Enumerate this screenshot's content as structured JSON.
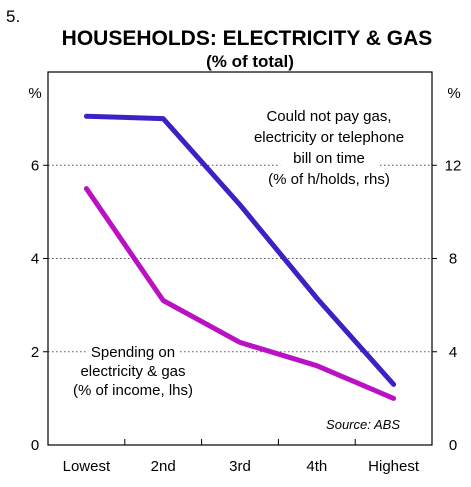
{
  "chart_data": {
    "type": "line",
    "figure_number": "5.",
    "title": "HOUSEHOLDS: ELECTRICITY & GAS",
    "subtitle": "(% of total)",
    "categories": [
      "Lowest",
      "2nd",
      "3rd",
      "4th",
      "Highest"
    ],
    "left_axis": {
      "unit": "%",
      "ylim": [
        0,
        8
      ],
      "ticks": [
        "0",
        "2",
        "4",
        "6"
      ]
    },
    "right_axis": {
      "unit": "%",
      "ylim": [
        0,
        16
      ],
      "ticks": [
        "0",
        "4",
        "8",
        "12"
      ]
    },
    "grid": "dotted horizontal",
    "series": [
      {
        "name": "Could not pay gas, electricity or telephone bill on time (% of h/holds, rhs)",
        "label_lines": [
          "Could not pay gas,",
          "electricity or telephone",
          "bill on time",
          "(% of h/holds, rhs)"
        ],
        "axis": "right",
        "color": "#3a22c4",
        "values": [
          14.1,
          14.0,
          10.3,
          6.3,
          2.6
        ]
      },
      {
        "name": "Spending on electricity & gas (% of income, lhs)",
        "label_lines": [
          "Spending on",
          "electricity & gas",
          "(% of income, lhs)"
        ],
        "axis": "left",
        "color": "#bb11c4",
        "values": [
          5.5,
          3.1,
          2.2,
          1.7,
          1.0
        ]
      }
    ],
    "source": "Source: ABS"
  }
}
